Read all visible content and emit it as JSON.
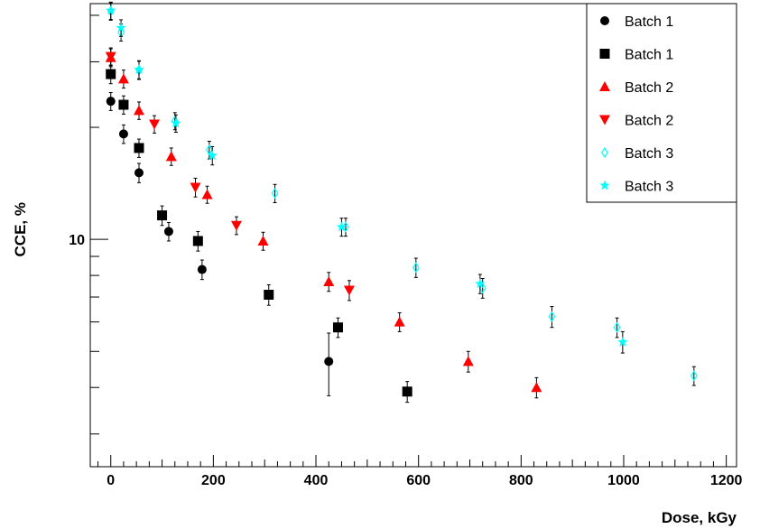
{
  "chart_data": {
    "type": "scatter",
    "xlabel": "Dose, kGy",
    "ylabel": "CCE, %",
    "xlim": [
      -40,
      1220
    ],
    "ylim": [
      2.45,
      43
    ],
    "y_scale": "log",
    "x_ticks": [
      "0",
      "200",
      "400",
      "600",
      "800",
      "1000",
      "1200"
    ],
    "y_ticks": [
      "10"
    ],
    "grid": false,
    "legend_position": "top-right",
    "series": [
      {
        "name": "Batch 1",
        "marker": "circle",
        "color": "#000000",
        "points": [
          [
            0,
            23.5
          ],
          [
            25,
            19.2
          ],
          [
            55,
            15.1
          ],
          [
            113,
            10.5
          ],
          [
            178,
            8.3
          ],
          [
            425,
            4.7
          ]
        ],
        "errors": [
          1.3,
          1.1,
          0.9,
          0.6,
          0.5,
          0.9
        ]
      },
      {
        "name": "Batch 1",
        "marker": "square",
        "color": "#000000",
        "points": [
          [
            0,
            27.8
          ],
          [
            25,
            23
          ],
          [
            55,
            17.6
          ],
          [
            100,
            11.6
          ],
          [
            170,
            9.9
          ],
          [
            308,
            7.1
          ],
          [
            443,
            5.8
          ],
          [
            578,
            3.9
          ]
        ],
        "errors": [
          1.6,
          1.3,
          1,
          0.7,
          0.6,
          0.45,
          0.35,
          0.25
        ]
      },
      {
        "name": "Batch 2",
        "marker": "triangle-up",
        "color": "#ff0000",
        "points": [
          [
            0,
            30.8
          ],
          [
            25,
            27
          ],
          [
            55,
            22.2
          ],
          [
            118,
            16.7
          ],
          [
            188,
            13.2
          ],
          [
            297,
            9.9
          ],
          [
            425,
            7.7
          ],
          [
            563,
            6
          ],
          [
            697,
            4.7
          ],
          [
            830,
            4
          ]
        ],
        "errors": [
          1.7,
          1.5,
          1.2,
          0.9,
          0.7,
          0.55,
          0.45,
          0.35,
          0.3,
          0.25
        ]
      },
      {
        "name": "Batch 2",
        "marker": "triangle-down",
        "color": "#ff0000",
        "points": [
          [
            0,
            31
          ],
          [
            85,
            20.4
          ],
          [
            165,
            13.8
          ],
          [
            245,
            10.9
          ],
          [
            465,
            7.3
          ]
        ],
        "errors": [
          1.7,
          1.1,
          0.8,
          0.6,
          0.45
        ]
      },
      {
        "name": "Batch 3",
        "marker": "diamond-open",
        "color": "#00ffff",
        "points": [
          [
            0,
            41
          ],
          [
            20,
            36
          ],
          [
            55,
            28.5
          ],
          [
            125,
            20.8
          ],
          [
            192,
            17.4
          ],
          [
            320,
            13.3
          ],
          [
            458,
            10.8
          ],
          [
            595,
            8.4
          ],
          [
            725,
            7.4
          ],
          [
            860,
            6.2
          ],
          [
            987,
            5.8
          ],
          [
            1137,
            4.3
          ]
        ],
        "errors": [
          2.2,
          1.9,
          1.6,
          1.1,
          0.95,
          0.75,
          0.6,
          0.5,
          0.45,
          0.4,
          0.35,
          0.25
        ]
      },
      {
        "name": "Batch 3",
        "marker": "star",
        "color": "#00ffff",
        "points": [
          [
            0,
            41.2
          ],
          [
            20,
            37
          ],
          [
            55,
            28.6
          ],
          [
            127,
            20.5
          ],
          [
            198,
            16.8
          ],
          [
            450,
            10.8
          ],
          [
            720,
            7.6
          ],
          [
            998,
            5.3
          ]
        ],
        "errors": [
          2.2,
          1.9,
          1.6,
          1.1,
          0.95,
          0.6,
          0.45,
          0.35
        ]
      }
    ]
  }
}
